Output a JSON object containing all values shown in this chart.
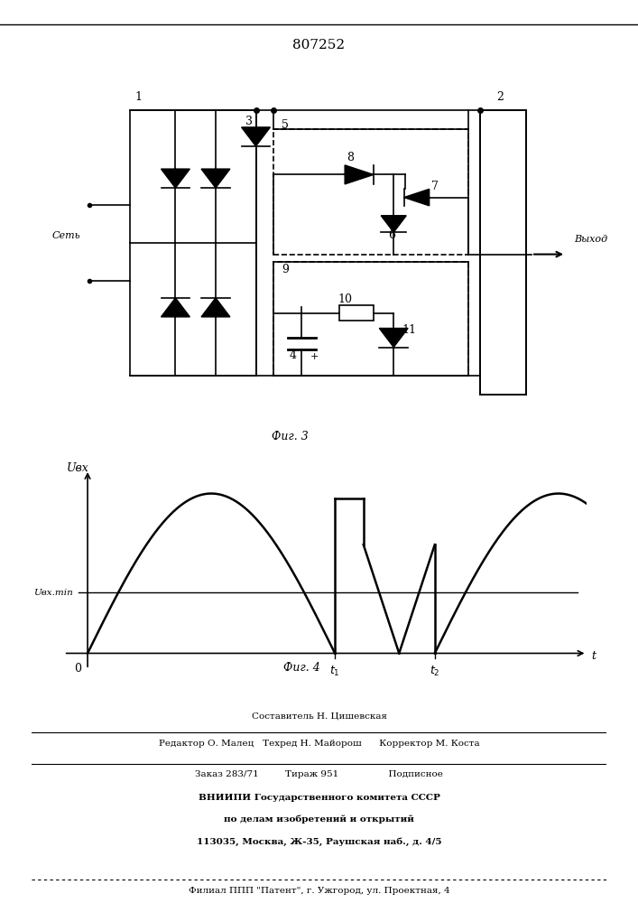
{
  "patent_number": "807252",
  "fig3_label": "Фиг. 3",
  "fig4_label": "Фиг. 4",
  "background_color": "#ffffff",
  "line_color": "#000000",
  "graph_ylabel": "Uвх",
  "graph_umin_label": "Uвх.min",
  "graph_xlabel": "t",
  "graph_t1_label": "t1",
  "graph_t2_label": "t2",
  "graph_origin": "0",
  "footer_line1": "Составитель Н. Цишевская",
  "footer_line2": "Редактор О. Малец   Техред Н. Майорош      Корректор М. Коста",
  "footer_line3": "Заказ 283/71         Тираж 951                 Подписное",
  "footer_line4": "ВНИИПИ Государственного комитета СССР",
  "footer_line5": "по делам изобретений и открытий",
  "footer_line6": "113035, Москва, Ж-35, Раушская наб., д. 4/5",
  "footer_line7": "Филиал ППП \"Патент\", г. Ужгород, ул. Проектная, 4"
}
